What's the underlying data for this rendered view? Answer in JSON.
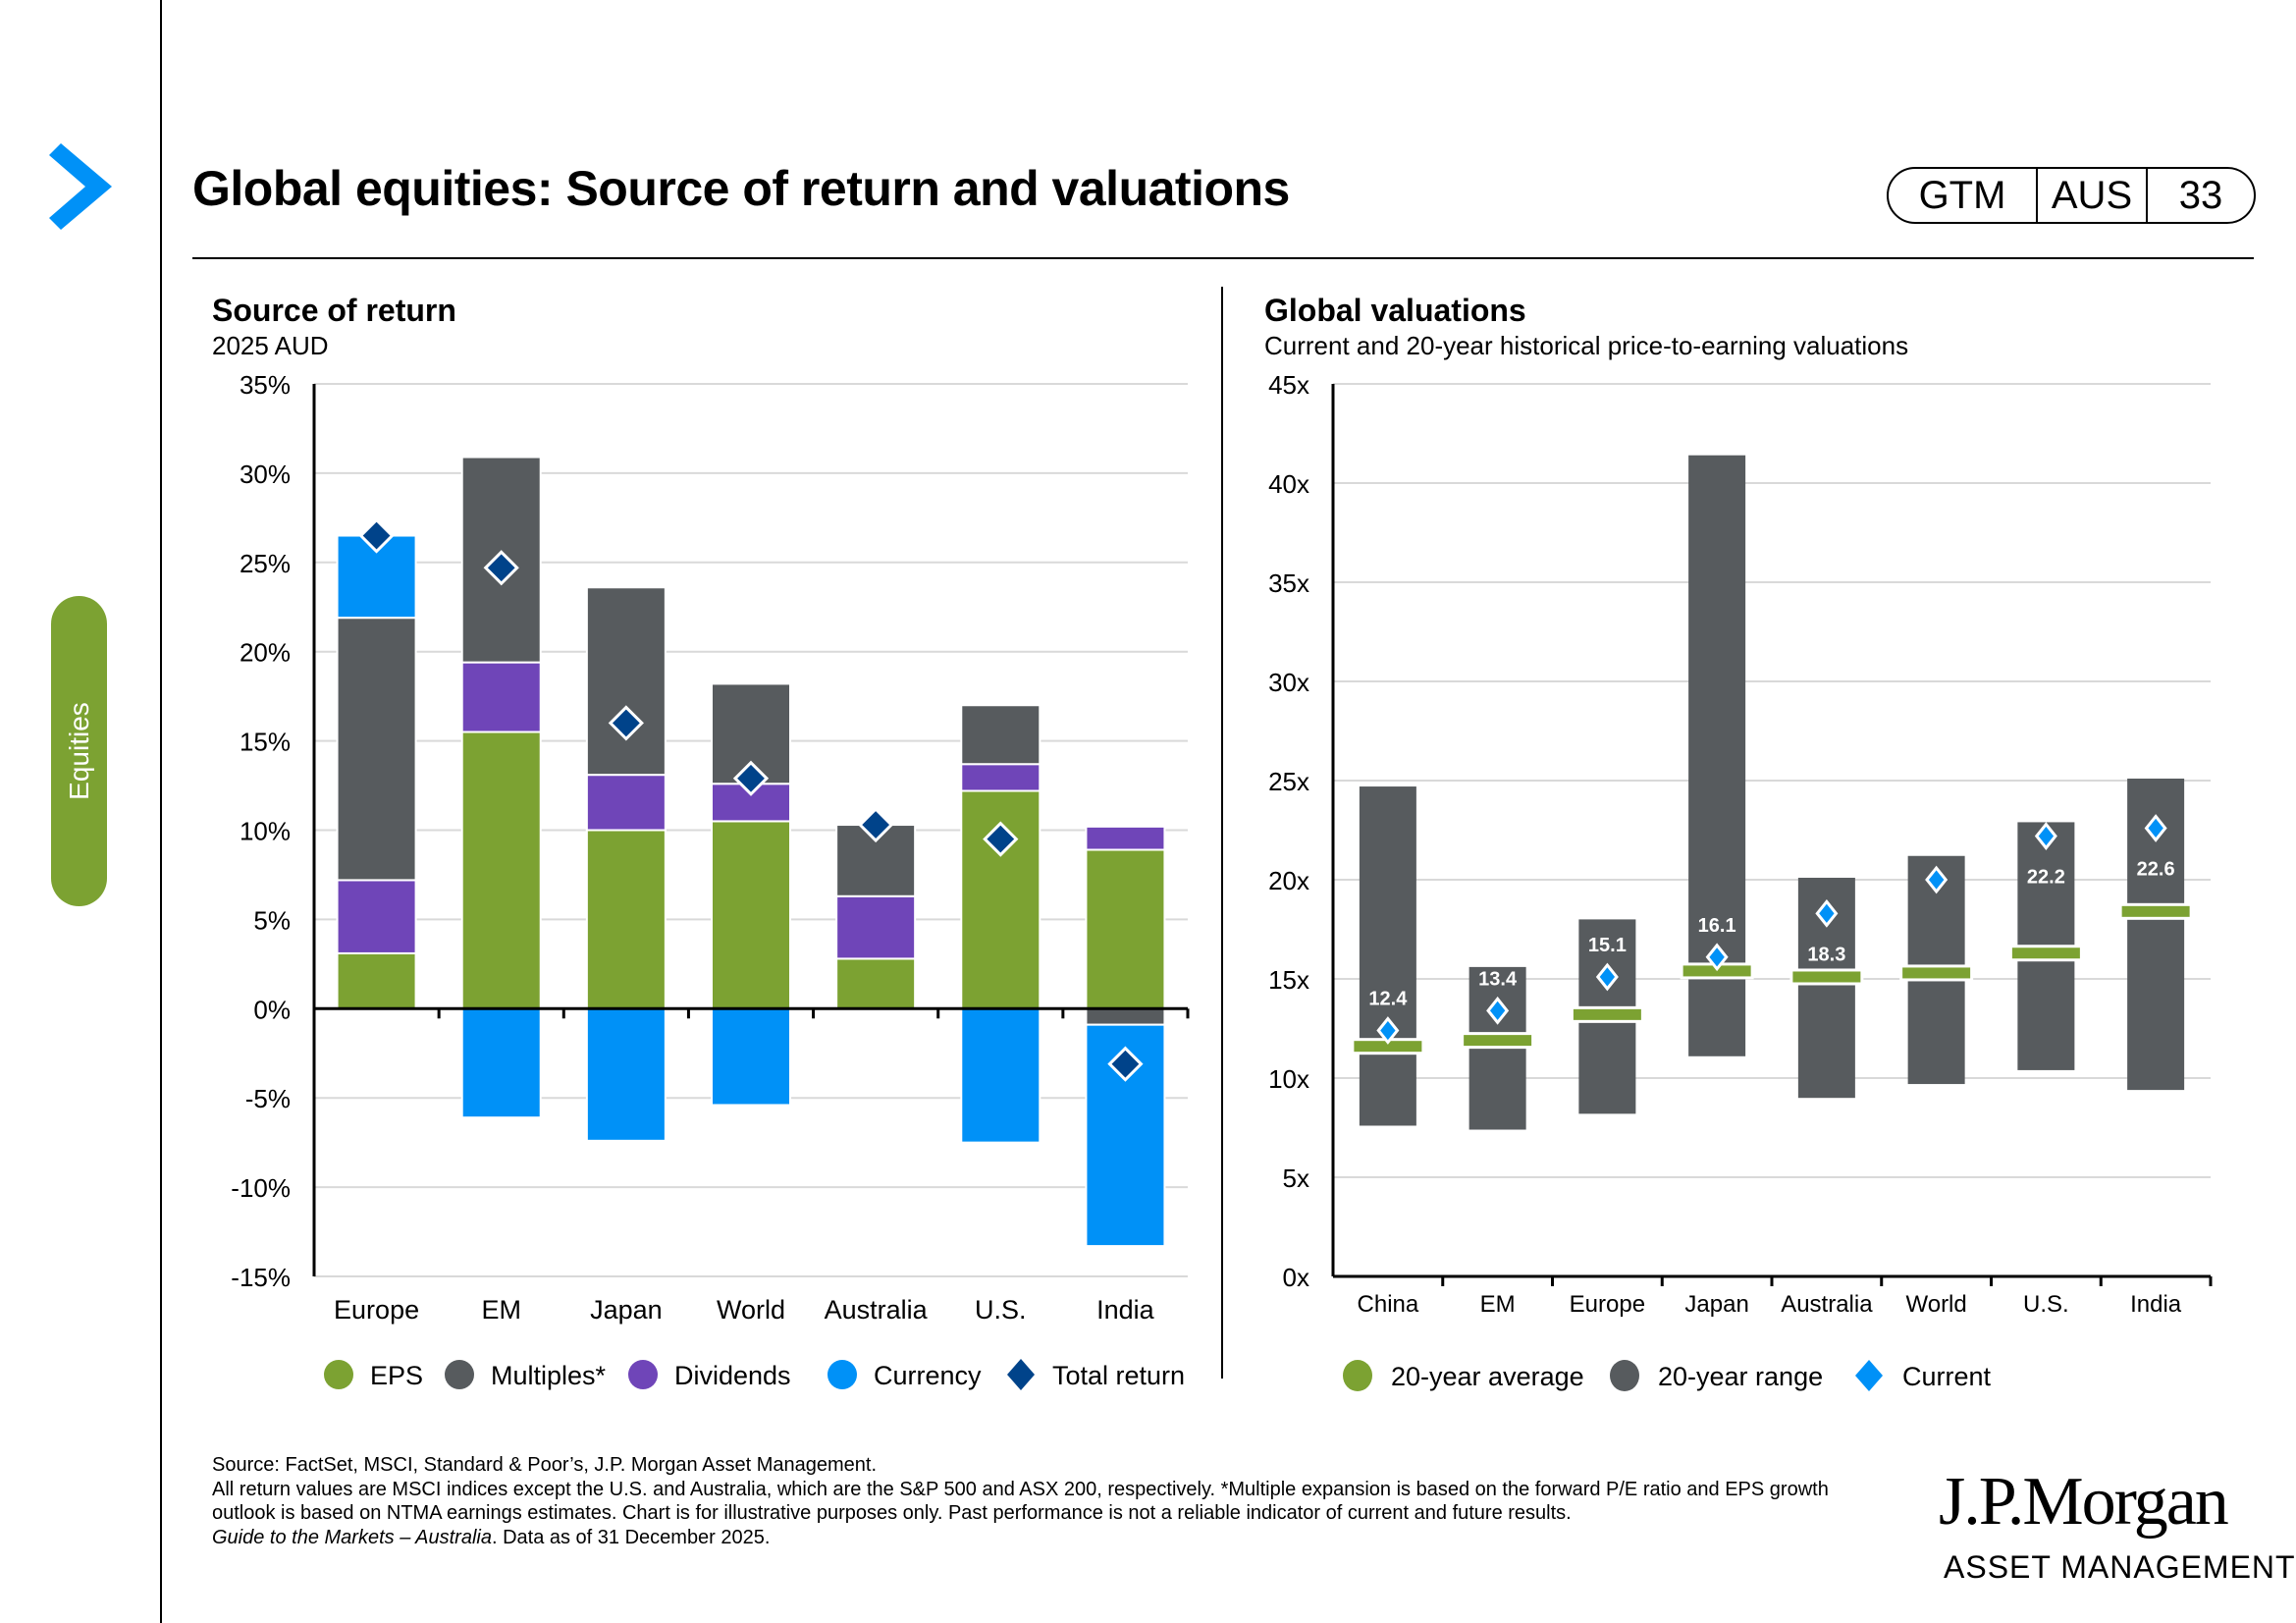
{
  "header": {
    "title": "Global equities: Source of return and valuations",
    "badge": [
      "GTM",
      "AUS",
      "33"
    ]
  },
  "sidebar": {
    "tab_label": "Equities"
  },
  "colors": {
    "eps": "#7ca232",
    "multiples": "#575b5e",
    "dividends": "#6f45b8",
    "currency": "#0091f7",
    "total_return": "#00438a",
    "avg": "#7ca232",
    "range": "#575b5e",
    "current": "#0091f7"
  },
  "chart_data": [
    {
      "type": "bar",
      "stacked": true,
      "title": "Source of return",
      "subtitle": "2025 AUD",
      "xlabel": "",
      "ylabel": "",
      "ylim": [
        -15,
        35
      ],
      "yticks": [
        35,
        30,
        25,
        20,
        15,
        10,
        5,
        0,
        -5,
        -10,
        -15
      ],
      "ytick_labels": [
        "35%",
        "30%",
        "25%",
        "20%",
        "15%",
        "10%",
        "5%",
        "0%",
        "-5%",
        "-10%",
        "-15%"
      ],
      "grid": true,
      "legend_position": "bottom",
      "categories": [
        "Europe",
        "EM",
        "Japan",
        "World",
        "Australia",
        "U.S.",
        "India"
      ],
      "series": [
        {
          "name": "EPS",
          "values": [
            3.1,
            15.5,
            10.0,
            10.5,
            2.8,
            12.2,
            8.9
          ]
        },
        {
          "name": "Multiples*",
          "values": [
            14.7,
            11.5,
            10.5,
            5.6,
            4.0,
            3.3,
            -0.9
          ]
        },
        {
          "name": "Dividends",
          "values": [
            4.1,
            3.9,
            3.1,
            2.1,
            3.5,
            1.5,
            1.3
          ]
        },
        {
          "name": "Currency",
          "values": [
            4.6,
            -6.1,
            -7.4,
            -5.4,
            0.0,
            -7.5,
            -12.4
          ]
        },
        {
          "name": "Total return",
          "type": "marker",
          "values": [
            26.5,
            24.7,
            16.0,
            12.9,
            10.3,
            9.5,
            -3.1
          ]
        }
      ]
    },
    {
      "type": "range",
      "title": "Global valuations",
      "subtitle": "Current and 20-year historical price-to-earning valuations",
      "xlabel": "",
      "ylabel": "",
      "ylim": [
        0,
        45
      ],
      "yticks": [
        45,
        40,
        35,
        30,
        25,
        20,
        15,
        10,
        5,
        0
      ],
      "ytick_labels": [
        "45x",
        "40x",
        "35x",
        "30x",
        "25x",
        "20x",
        "15x",
        "10x",
        "5x",
        "0x"
      ],
      "grid": true,
      "legend_position": "bottom",
      "categories": [
        "China",
        "EM",
        "Europe",
        "Japan",
        "Australia",
        "World",
        "U.S.",
        "India"
      ],
      "series": [
        {
          "name": "20-year range",
          "low": [
            7.6,
            7.4,
            8.2,
            11.1,
            9.0,
            9.7,
            10.4,
            9.4
          ],
          "high": [
            24.7,
            15.6,
            18.0,
            41.4,
            20.1,
            21.2,
            22.9,
            25.1
          ]
        },
        {
          "name": "20-year average",
          "values": [
            11.6,
            11.9,
            13.2,
            15.4,
            15.1,
            15.3,
            16.3,
            18.4
          ]
        },
        {
          "name": "Current",
          "values": [
            12.4,
            13.4,
            15.1,
            16.1,
            18.3,
            20.0,
            22.2,
            22.6
          ],
          "labels": [
            "12.4",
            "13.4",
            "15.1",
            "16.1",
            "18.3",
            "20.0",
            "22.2",
            "22.6"
          ]
        }
      ]
    }
  ],
  "legend1": [
    "EPS",
    "Multiples*",
    "Dividends",
    "Currency",
    "Total return"
  ],
  "legend2": [
    "20-year average",
    "20-year range",
    "Current"
  ],
  "footer": {
    "line1": "Source: FactSet, MSCI, Standard & Poor’s, J.P. Morgan Asset Management.",
    "line2": "All return values are MSCI indices except the U.S. and Australia, which are the S&P 500 and ASX 200, respectively. *Multiple expansion is based on the forward P/E ratio and EPS growth outlook is based on NTMA earnings estimates. Chart is for illustrative purposes only. Past performance is not a reliable indicator of current and future results.",
    "line3_italic": "Guide to the Markets – Australia",
    "line3_rest": ". Data as of 31 December 2025."
  },
  "logo": {
    "line1": "J.P.Morgan",
    "line2": "ASSET MANAGEMENT"
  }
}
